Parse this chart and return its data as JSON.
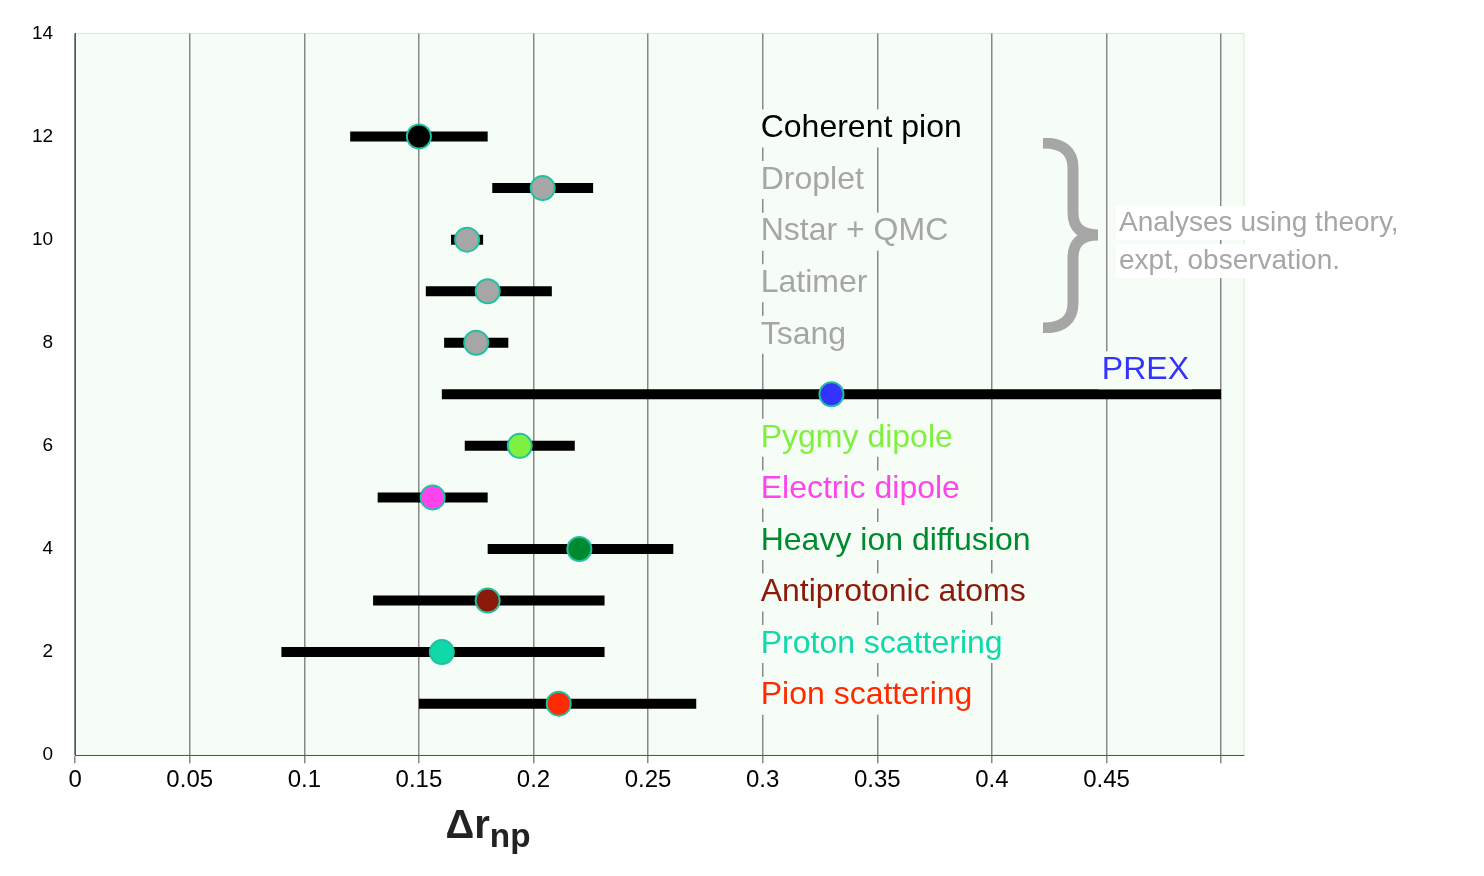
{
  "chart_data": {
    "type": "scatter",
    "xlabel": "Δr$_{np}$",
    "xlim": [
      0,
      0.51
    ],
    "xticks": [
      0,
      0.05,
      0.1,
      0.15,
      0.2,
      0.25,
      0.3,
      0.35,
      0.4,
      0.45,
      {
        "value": 0.5,
        "label": null
      }
    ],
    "ylim": [
      0,
      14
    ],
    "yticks": [
      0,
      2,
      4,
      6,
      8,
      10,
      12,
      14
    ],
    "grid": "x",
    "legend": false,
    "marker": "circle",
    "annotations": [
      "Analyses using theory, expt, observation."
    ],
    "series": [
      {
        "name": "Coherent pion",
        "color": "#000000",
        "x": [
          0.15
        ],
        "values": [
          12
        ],
        "xerrors": [
          [
            0.12,
            0.18
          ]
        ]
      },
      {
        "name": "Droplet",
        "color": "#a6a6a6",
        "x": [
          0.204
        ],
        "values": [
          11
        ],
        "xerrors": [
          [
            0.182,
            0.226
          ]
        ]
      },
      {
        "name": "Nstar + QMC",
        "color": "#a6a6a6",
        "x": [
          0.171
        ],
        "values": [
          10
        ],
        "xerrors": [
          [
            0.164,
            0.178
          ]
        ]
      },
      {
        "name": "Latimer",
        "color": "#a6a6a6",
        "x": [
          0.18
        ],
        "values": [
          9
        ],
        "xerrors": [
          [
            0.153,
            0.208
          ]
        ]
      },
      {
        "name": "Tsang",
        "color": "#a6a6a6",
        "x": [
          0.175
        ],
        "values": [
          8
        ],
        "xerrors": [
          [
            0.161,
            0.189
          ]
        ]
      },
      {
        "name": "PREX",
        "color": "#3333ff",
        "x": [
          0.33
        ],
        "values": [
          7
        ],
        "xerrors": [
          [
            0.16,
            0.5
          ]
        ]
      },
      {
        "name": "Pygmy dipole",
        "color": "#80f040",
        "x": [
          0.194
        ],
        "values": [
          6
        ],
        "xerrors": [
          [
            0.17,
            0.218
          ]
        ]
      },
      {
        "name": "Electric dipole",
        "color": "#ff44ee",
        "x": [
          0.156
        ],
        "values": [
          5
        ],
        "xerrors": [
          [
            0.132,
            0.18
          ]
        ]
      },
      {
        "name": "Heavy ion diffusion",
        "color": "#008a30",
        "x": [
          0.22
        ],
        "values": [
          4
        ],
        "xerrors": [
          [
            0.18,
            0.261
          ]
        ]
      },
      {
        "name": "Antiprotonic atoms",
        "color": "#8b1a0a",
        "x": [
          0.18
        ],
        "values": [
          3
        ],
        "xerrors": [
          [
            0.13,
            0.231
          ]
        ]
      },
      {
        "name": "Proton scattering",
        "color": "#10d8a8",
        "x": [
          0.16
        ],
        "values": [
          2
        ],
        "xerrors": [
          [
            0.09,
            0.231
          ]
        ]
      },
      {
        "name": "Pion scattering",
        "color": "#ff2a00",
        "x": [
          0.211
        ],
        "values": [
          1
        ],
        "xerrors": [
          [
            0.15,
            0.271
          ]
        ]
      }
    ]
  }
}
